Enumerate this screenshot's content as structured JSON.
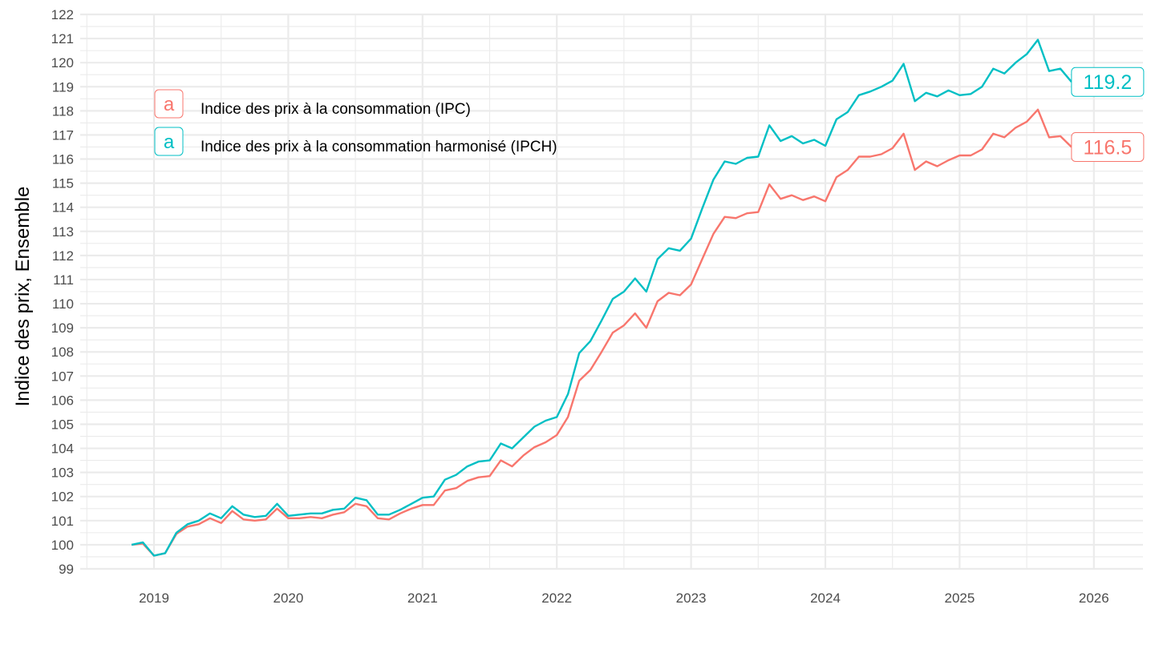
{
  "chart_data": {
    "type": "line",
    "title": "",
    "xlabel": "",
    "ylabel": "Indice des prix, Ensemble",
    "ylim": [
      99,
      122
    ],
    "xlim": [
      "2018-07",
      "2026-05"
    ],
    "x_ticks": [
      "2019",
      "2020",
      "2021",
      "2022",
      "2023",
      "2024",
      "2025",
      "2026"
    ],
    "y_ticks": [
      "99",
      "100",
      "101",
      "102",
      "103",
      "104",
      "105",
      "106",
      "107",
      "108",
      "109",
      "110",
      "111",
      "112",
      "113",
      "114",
      "115",
      "116",
      "117",
      "118",
      "119",
      "120",
      "121",
      "122"
    ],
    "grid": true,
    "legend_position": "top-left",
    "start": "2018-11",
    "frequency": "monthly",
    "series": [
      {
        "name": "Indice des prix à la consommation (IPC)",
        "color": "#F8766D",
        "key_glyph": "a",
        "end_label": "116.5",
        "values": [
          100.0,
          100.05,
          99.55,
          99.65,
          100.45,
          100.75,
          100.85,
          101.1,
          100.9,
          101.4,
          101.05,
          101.0,
          101.05,
          101.5,
          101.1,
          101.1,
          101.15,
          101.1,
          101.25,
          101.35,
          101.7,
          101.6,
          101.1,
          101.05,
          101.3,
          101.5,
          101.65,
          101.65,
          102.25,
          102.35,
          102.65,
          102.8,
          102.85,
          103.5,
          103.25,
          103.7,
          104.05,
          104.25,
          104.55,
          105.3,
          106.8,
          107.25,
          108.0,
          108.8,
          109.1,
          109.6,
          109.0,
          110.1,
          110.45,
          110.35,
          110.8,
          111.85,
          112.9,
          113.6,
          113.55,
          113.75,
          113.8,
          114.95,
          114.35,
          114.5,
          114.3,
          114.45,
          114.25,
          115.25,
          115.55,
          116.1,
          116.1,
          116.2,
          116.45,
          117.05,
          115.55,
          115.9,
          115.7,
          115.95,
          116.15,
          116.15,
          116.4,
          117.05,
          116.9,
          117.3,
          117.55,
          118.05,
          116.9,
          116.95,
          116.5
        ]
      },
      {
        "name": "Indice des prix à la consommation harmonisé (IPCH)",
        "color": "#00BFC4",
        "key_glyph": "a",
        "end_label": "119.2",
        "values": [
          100.0,
          100.1,
          99.55,
          99.65,
          100.5,
          100.85,
          101.0,
          101.3,
          101.1,
          101.6,
          101.25,
          101.15,
          101.2,
          101.7,
          101.2,
          101.25,
          101.3,
          101.3,
          101.45,
          101.5,
          101.95,
          101.85,
          101.25,
          101.25,
          101.45,
          101.7,
          101.95,
          102.0,
          102.7,
          102.9,
          103.25,
          103.45,
          103.5,
          104.2,
          104.0,
          104.45,
          104.9,
          105.15,
          105.3,
          106.25,
          107.95,
          108.45,
          109.3,
          110.2,
          110.5,
          111.05,
          110.5,
          111.85,
          112.3,
          112.2,
          112.7,
          113.95,
          115.15,
          115.9,
          115.8,
          116.05,
          116.1,
          117.4,
          116.75,
          116.95,
          116.65,
          116.8,
          116.55,
          117.65,
          117.95,
          118.65,
          118.8,
          119.0,
          119.25,
          119.95,
          118.4,
          118.75,
          118.6,
          118.85,
          118.65,
          118.7,
          119.0,
          119.75,
          119.55,
          120.0,
          120.35,
          120.95,
          119.65,
          119.75,
          119.2
        ]
      }
    ]
  }
}
